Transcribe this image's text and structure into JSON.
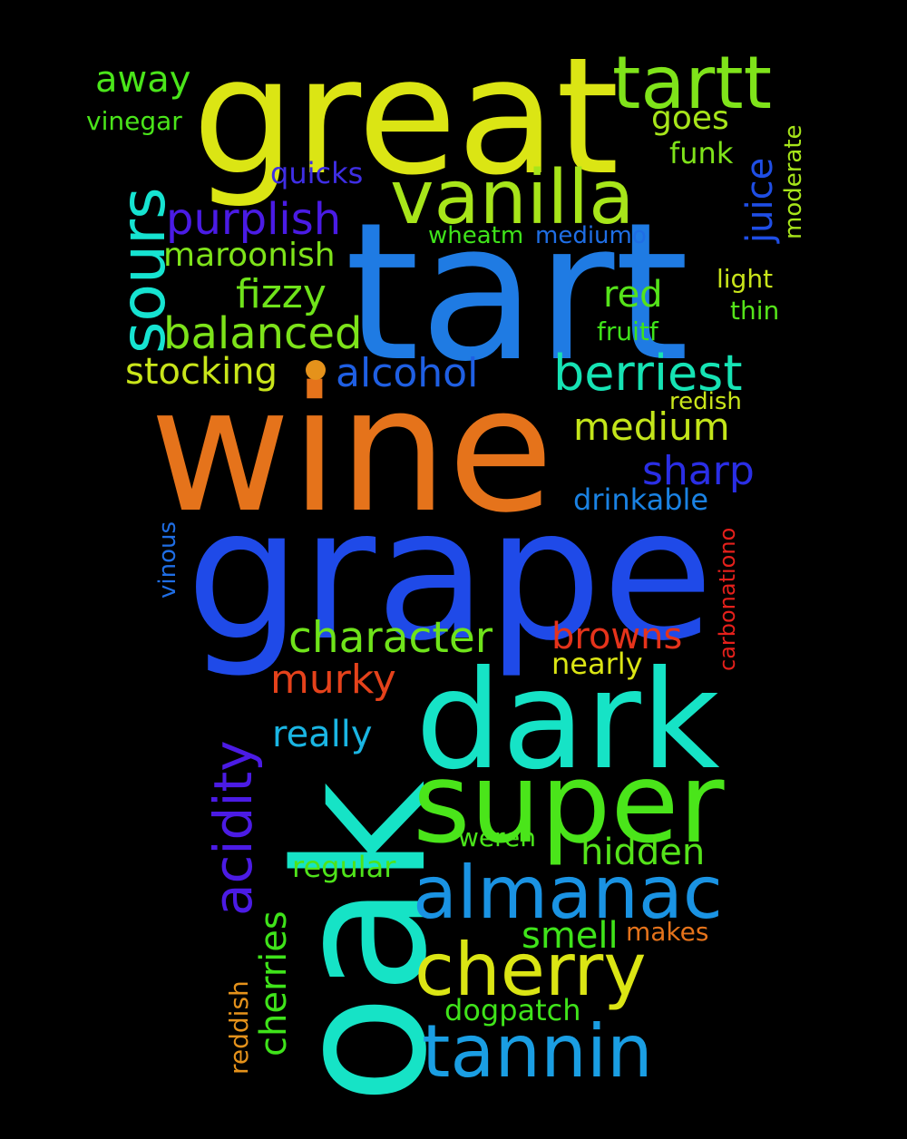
{
  "words": [
    {
      "id": "tart",
      "text": "tart",
      "color": "#1f7be3"
    },
    {
      "id": "wine",
      "text": "wine",
      "color": "#e5731b"
    },
    {
      "id": "grape",
      "text": "grape",
      "color": "#1f4ae8"
    },
    {
      "id": "great",
      "text": "great",
      "color": "#dbe514"
    },
    {
      "id": "oak",
      "text": "oak",
      "color": "#16e3c6"
    },
    {
      "id": "dark",
      "text": "dark",
      "color": "#16e3c6"
    },
    {
      "id": "super",
      "text": "super",
      "color": "#4ae51a"
    },
    {
      "id": "tartt",
      "text": "tartt",
      "color": "#7fe31a"
    },
    {
      "id": "vanilla",
      "text": "vanilla",
      "color": "#a7e51a"
    },
    {
      "id": "sours",
      "text": "sours",
      "color": "#16e3d1"
    },
    {
      "id": "almanac",
      "text": "almanac",
      "color": "#1a93e3"
    },
    {
      "id": "cherry",
      "text": "cherry",
      "color": "#dbe514"
    },
    {
      "id": "tannin",
      "text": "tannin",
      "color": "#1a9ee3"
    },
    {
      "id": "acidity",
      "text": "acidity",
      "color": "#4b1be5"
    },
    {
      "id": "berriest",
      "text": "berriest",
      "color": "#16e3b4"
    },
    {
      "id": "purplish",
      "text": "purplish",
      "color": "#4a1be5"
    },
    {
      "id": "balanced",
      "text": "balanced",
      "color": "#7de31a"
    },
    {
      "id": "character",
      "text": "character",
      "color": "#6fe31a"
    },
    {
      "id": "medium",
      "text": "medium",
      "color": "#c3e51a"
    },
    {
      "id": "murky",
      "text": "murky",
      "color": "#e5421b"
    },
    {
      "id": "browns",
      "text": "browns",
      "color": "#e5331b"
    },
    {
      "id": "sharp",
      "text": "sharp",
      "color": "#2a2ee5"
    },
    {
      "id": "fizzy",
      "text": "fizzy",
      "color": "#6fe31a"
    },
    {
      "id": "alcohol",
      "text": "alcohol",
      "color": "#1f5fe3"
    },
    {
      "id": "stocking",
      "text": "stocking",
      "color": "#c9e51a"
    },
    {
      "id": "cherries",
      "text": "cherries",
      "color": "#3fe31a"
    },
    {
      "id": "hidden",
      "text": "hidden",
      "color": "#55e31a"
    },
    {
      "id": "really",
      "text": "really",
      "color": "#1ab5e3"
    },
    {
      "id": "smell",
      "text": "smell",
      "color": "#3fe31a"
    },
    {
      "id": "juice",
      "text": "juice",
      "color": "#1f4ee5"
    },
    {
      "id": "away",
      "text": "away",
      "color": "#4ae51a"
    },
    {
      "id": "red",
      "text": "red",
      "color": "#55e31a"
    },
    {
      "id": "goes",
      "text": "goes",
      "color": "#a7e51a"
    },
    {
      "id": "maroonish",
      "text": "maroonish",
      "color": "#7fe31a"
    },
    {
      "id": "quicks",
      "text": "quicks",
      "color": "#3f2ee5"
    },
    {
      "id": "dogpatch",
      "text": "dogpatch",
      "color": "#3fe31a"
    },
    {
      "id": "regular",
      "text": "regular",
      "color": "#4fe31a"
    },
    {
      "id": "drinkable",
      "text": "drinkable",
      "color": "#1a82e3"
    },
    {
      "id": "nearly",
      "text": "nearly",
      "color": "#dbe514"
    },
    {
      "id": "funk",
      "text": "funk",
      "color": "#7fe31a"
    },
    {
      "id": "vinegar",
      "text": "vinegar",
      "color": "#4ae51a"
    },
    {
      "id": "moderate",
      "text": "moderate",
      "color": "#a7e51a"
    },
    {
      "id": "wheatm",
      "text": "wheatm",
      "color": "#3fe31a"
    },
    {
      "id": "mediumo",
      "text": "mediumo",
      "color": "#1f6ee5"
    },
    {
      "id": "light",
      "text": "light",
      "color": "#c9e51a"
    },
    {
      "id": "thin",
      "text": "thin",
      "color": "#55e31a"
    },
    {
      "id": "fruitf",
      "text": "fruitf",
      "color": "#3fe31a"
    },
    {
      "id": "redish",
      "text": "redish",
      "color": "#c9e51a"
    },
    {
      "id": "vinous",
      "text": "vinous",
      "color": "#1f6ee5"
    },
    {
      "id": "carbonationo",
      "text": "carbonationo",
      "color": "#e5201b"
    },
    {
      "id": "weren",
      "text": "weren",
      "color": "#4ae51a"
    },
    {
      "id": "makes",
      "text": "makes",
      "color": "#e5731b"
    },
    {
      "id": "reddish",
      "text": "reddish",
      "color": "#e5921b"
    }
  ]
}
